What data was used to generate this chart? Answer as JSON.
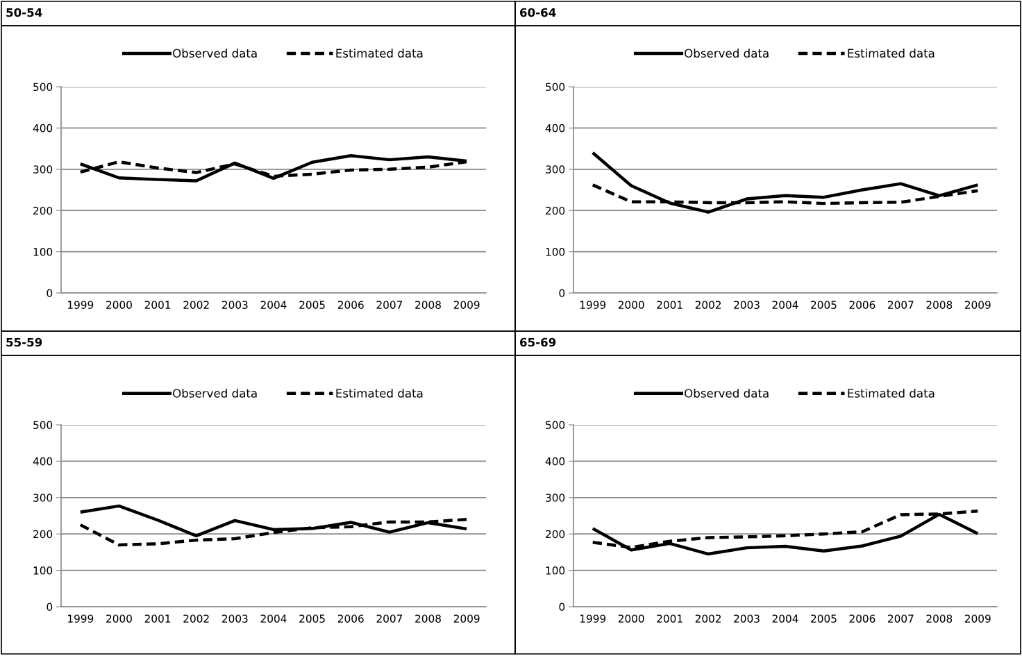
{
  "chart_data": [
    {
      "type": "line",
      "title": "50-54",
      "categories": [
        "1999",
        "2000",
        "2001",
        "2002",
        "2003",
        "2004",
        "2005",
        "2006",
        "2007",
        "2008",
        "2009"
      ],
      "ylim": [
        0,
        500
      ],
      "yticks": [
        0,
        100,
        200,
        300,
        400,
        500
      ],
      "grid": "y",
      "legend": "top",
      "series": [
        {
          "name": "Observed data",
          "color": "#000000",
          "line_style": "solid",
          "values": [
            313,
            279,
            275,
            272,
            315,
            278,
            317,
            333,
            323,
            330,
            320
          ]
        },
        {
          "name": "Estimated data",
          "color": "#000000",
          "line_style": "dashed",
          "values": [
            293,
            318,
            303,
            292,
            313,
            283,
            288,
            298,
            300,
            305,
            318
          ]
        }
      ]
    },
    {
      "type": "line",
      "title": "60-64",
      "categories": [
        "1999",
        "2000",
        "2001",
        "2002",
        "2003",
        "2004",
        "2005",
        "2006",
        "2007",
        "2008",
        "2009"
      ],
      "ylim": [
        0,
        500
      ],
      "yticks": [
        0,
        100,
        200,
        300,
        400,
        500
      ],
      "grid": "y",
      "legend": "top",
      "series": [
        {
          "name": "Observed data",
          "color": "#000000",
          "line_style": "solid",
          "values": [
            340,
            260,
            218,
            196,
            228,
            236,
            232,
            250,
            265,
            236,
            262
          ]
        },
        {
          "name": "Estimated data",
          "color": "#000000",
          "line_style": "dashed",
          "values": [
            262,
            221,
            221,
            219,
            219,
            221,
            217,
            219,
            220,
            234,
            248
          ]
        }
      ]
    },
    {
      "type": "line",
      "title": "55-59",
      "categories": [
        "1999",
        "2000",
        "2001",
        "2002",
        "2003",
        "2004",
        "2005",
        "2006",
        "2007",
        "2008",
        "2009"
      ],
      "ylim": [
        0,
        500
      ],
      "yticks": [
        0,
        100,
        200,
        300,
        400,
        500
      ],
      "grid": "y",
      "legend": "top",
      "series": [
        {
          "name": "Observed data",
          "color": "#000000",
          "line_style": "solid",
          "values": [
            260,
            277,
            238,
            195,
            237,
            212,
            215,
            232,
            205,
            231,
            214
          ]
        },
        {
          "name": "Estimated data",
          "color": "#000000",
          "line_style": "dashed",
          "values": [
            225,
            170,
            173,
            183,
            187,
            204,
            217,
            220,
            233,
            233,
            240
          ]
        }
      ]
    },
    {
      "type": "line",
      "title": "65-69",
      "categories": [
        "1999",
        "2000",
        "2001",
        "2002",
        "2003",
        "2004",
        "2005",
        "2006",
        "2007",
        "2008",
        "2009"
      ],
      "ylim": [
        0,
        500
      ],
      "yticks": [
        0,
        100,
        200,
        300,
        400,
        500
      ],
      "grid": "y",
      "legend": "top",
      "series": [
        {
          "name": "Observed data",
          "color": "#000000",
          "line_style": "solid",
          "values": [
            215,
            156,
            174,
            145,
            162,
            166,
            153,
            167,
            194,
            254,
            201
          ]
        },
        {
          "name": "Estimated data",
          "color": "#000000",
          "line_style": "dashed",
          "values": [
            177,
            163,
            180,
            190,
            192,
            195,
            200,
            206,
            253,
            255,
            263
          ]
        }
      ]
    }
  ]
}
